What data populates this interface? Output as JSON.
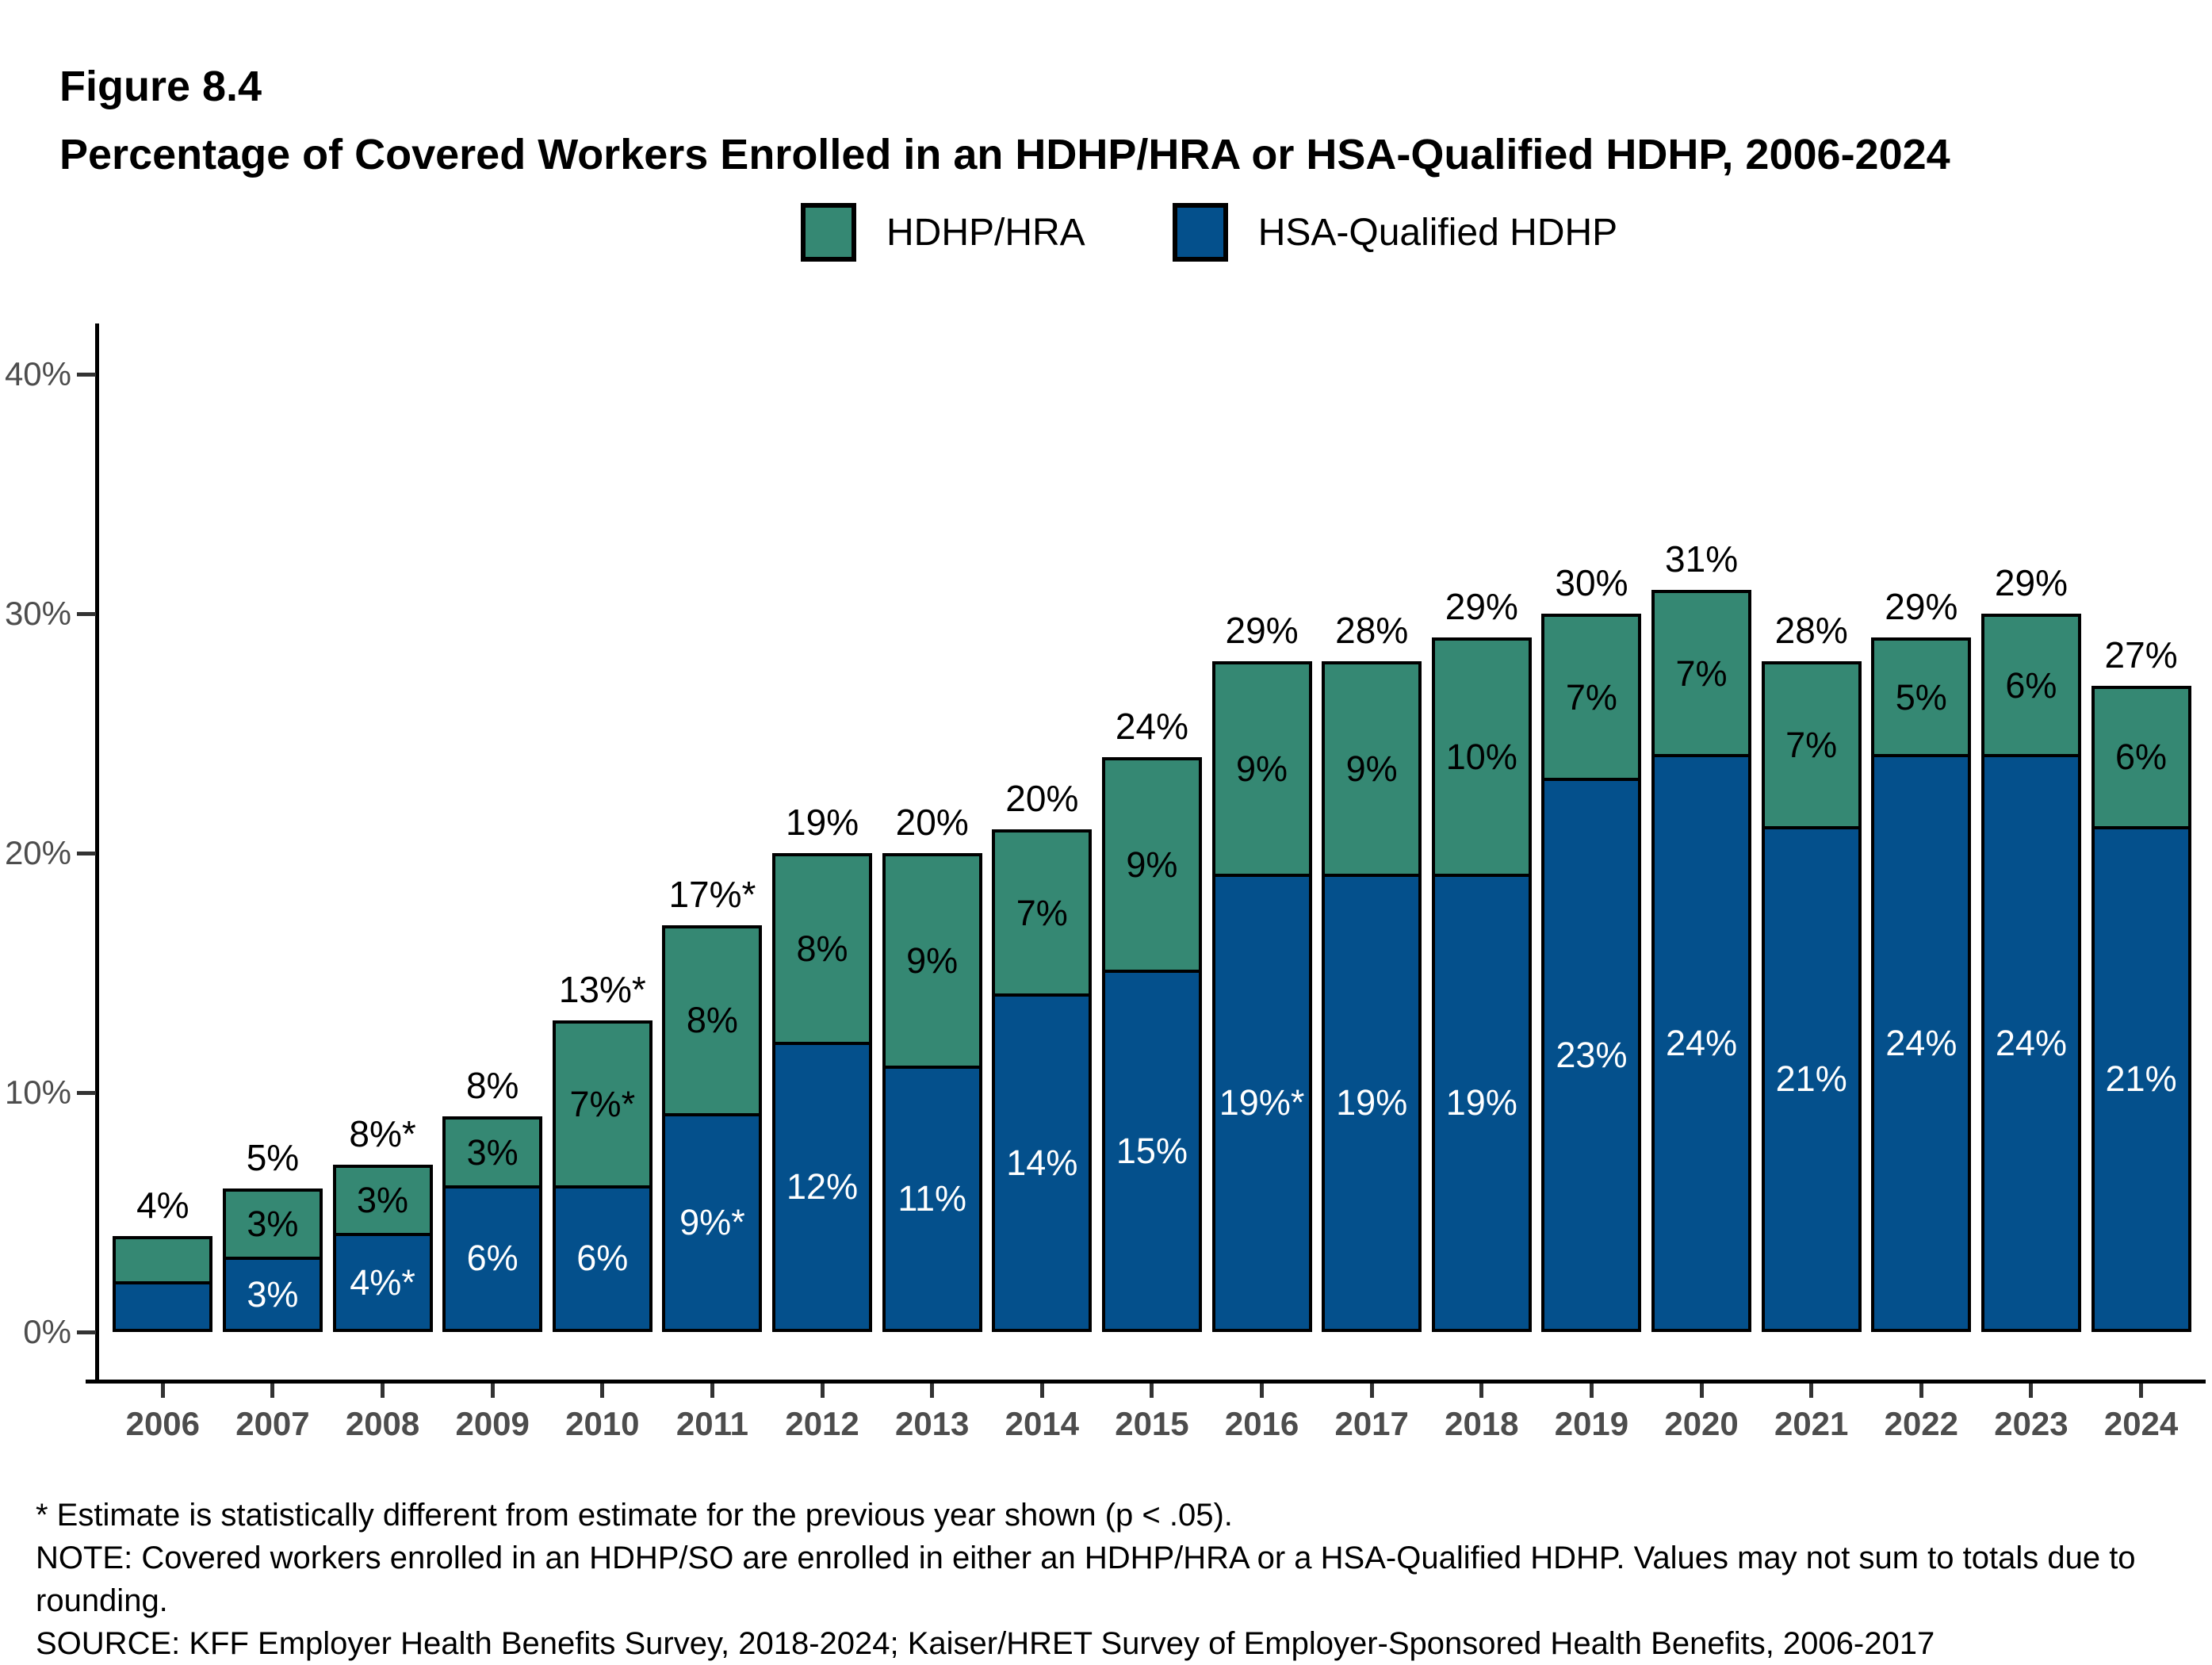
{
  "figure": {
    "label": "Figure 8.4",
    "title": "Percentage of Covered Workers Enrolled in an HDHP/HRA or HSA-Qualified HDHP, 2006-2024"
  },
  "legend": {
    "items": [
      {
        "label": "HDHP/HRA",
        "color": "#358873"
      },
      {
        "label": "HSA-Qualified HDHP",
        "color": "#04508C"
      }
    ]
  },
  "chart_data": {
    "type": "bar",
    "stacked": true,
    "title": "Percentage of Covered Workers Enrolled in an HDHP/HRA or HSA-Qualified HDHP, 2006-2024",
    "categories": [
      "2006",
      "2007",
      "2008",
      "2009",
      "2010",
      "2011",
      "2012",
      "2013",
      "2014",
      "2015",
      "2016",
      "2017",
      "2018",
      "2019",
      "2020",
      "2021",
      "2022",
      "2023",
      "2024"
    ],
    "series": [
      {
        "name": "HSA-Qualified HDHP",
        "position": "bottom",
        "color": "#04508C",
        "label_color": "#ffffff",
        "values": [
          2,
          3,
          4,
          6,
          6,
          9,
          12,
          11,
          14,
          15,
          19,
          19,
          19,
          23,
          24,
          21,
          24,
          24,
          21
        ],
        "labels": [
          "",
          "3%",
          "4%*",
          "6%",
          "6%",
          "9%*",
          "12%",
          "11%",
          "14%",
          "15%",
          "19%*",
          "19%",
          "19%",
          "23%",
          "24%",
          "21%",
          "24%",
          "24%",
          "21%"
        ]
      },
      {
        "name": "HDHP/HRA",
        "position": "top",
        "color": "#358873",
        "label_color": "#000000",
        "values": [
          2,
          3,
          3,
          3,
          7,
          8,
          8,
          9,
          7,
          9,
          9,
          9,
          10,
          7,
          7,
          7,
          5,
          6,
          6
        ],
        "labels": [
          "",
          "3%",
          "3%",
          "3%",
          "7%*",
          "8%",
          "8%",
          "9%",
          "7%",
          "9%",
          "9%",
          "9%",
          "10%",
          "7%",
          "7%",
          "7%",
          "5%",
          "6%",
          "6%"
        ]
      }
    ],
    "total_labels": [
      "4%",
      "5%",
      "8%*",
      "8%",
      "13%*",
      "17%*",
      "19%",
      "20%",
      "20%",
      "24%",
      "29%",
      "28%",
      "29%",
      "30%",
      "31%",
      "28%",
      "29%",
      "29%",
      "27%"
    ],
    "y_axis": {
      "tick_values": [
        0,
        10,
        20,
        30,
        40
      ],
      "tick_labels": [
        "0%",
        "10%",
        "20%",
        "30%",
        "40%"
      ],
      "range": [
        0,
        40
      ]
    },
    "grid": false,
    "legend_position": "top"
  },
  "footnotes": {
    "lines": [
      "* Estimate is statistically different from estimate for the previous year shown (p < .05).",
      "NOTE: Covered workers enrolled in an HDHP/SO are enrolled in either an HDHP/HRA or a HSA-Qualified HDHP. Values may not sum to totals due to",
      "rounding.",
      "SOURCE: KFF Employer Health Benefits Survey, 2018-2024; Kaiser/HRET Survey of Employer-Sponsored Health Benefits, 2006-2017"
    ]
  }
}
